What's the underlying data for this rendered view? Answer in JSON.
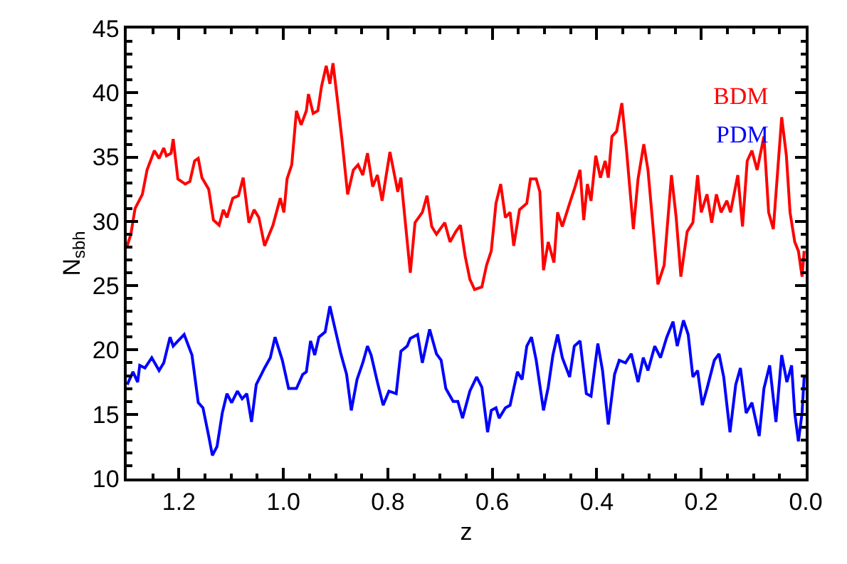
{
  "chart_data": {
    "type": "line",
    "xlabel": "z",
    "ylabel": "N$_{sbh}$",
    "xlim": [
      1.3,
      0.0
    ],
    "ylim": [
      10,
      45
    ],
    "xticks": [
      {
        "value": 1.2,
        "label": "1.2"
      },
      {
        "value": 1.0,
        "label": "1.0"
      },
      {
        "value": 0.8,
        "label": "0.8"
      },
      {
        "value": 0.6,
        "label": "0.6"
      },
      {
        "value": 0.4,
        "label": "0.4"
      },
      {
        "value": 0.2,
        "label": "0.2"
      },
      {
        "value": 0.0,
        "label": "0.0"
      }
    ],
    "yticks": [
      10,
      15,
      20,
      25,
      30,
      35,
      40,
      45
    ],
    "marker": "none",
    "line_style": "solid",
    "series": [
      {
        "name": "BDM",
        "color": "#ff0000",
        "x": [
          1.299,
          1.292,
          1.284,
          1.27,
          1.261,
          1.247,
          1.238,
          1.229,
          1.224,
          1.215,
          1.211,
          1.202,
          1.188,
          1.179,
          1.17,
          1.163,
          1.156,
          1.143,
          1.134,
          1.123,
          1.115,
          1.108,
          1.097,
          1.086,
          1.077,
          1.066,
          1.056,
          1.047,
          1.036,
          1.02,
          1.006,
          0.999,
          0.993,
          0.984,
          0.975,
          0.966,
          0.956,
          0.952,
          0.943,
          0.934,
          0.927,
          0.918,
          0.911,
          0.905,
          0.897,
          0.888,
          0.877,
          0.866,
          0.857,
          0.848,
          0.839,
          0.829,
          0.82,
          0.811,
          0.796,
          0.781,
          0.775,
          0.757,
          0.748,
          0.734,
          0.725,
          0.716,
          0.707,
          0.691,
          0.681,
          0.67,
          0.661,
          0.652,
          0.643,
          0.634,
          0.62,
          0.611,
          0.602,
          0.593,
          0.584,
          0.575,
          0.566,
          0.559,
          0.548,
          0.534,
          0.527,
          0.516,
          0.509,
          0.502,
          0.493,
          0.482,
          0.475,
          0.466,
          0.452,
          0.443,
          0.432,
          0.425,
          0.418,
          0.411,
          0.402,
          0.393,
          0.384,
          0.378,
          0.371,
          0.362,
          0.352,
          0.343,
          0.33,
          0.321,
          0.31,
          0.302,
          0.293,
          0.283,
          0.271,
          0.257,
          0.248,
          0.239,
          0.227,
          0.216,
          0.207,
          0.2,
          0.189,
          0.18,
          0.171,
          0.162,
          0.151,
          0.144,
          0.13,
          0.121,
          0.112,
          0.103,
          0.093,
          0.08,
          0.071,
          0.062,
          0.046,
          0.037,
          0.03,
          0.021,
          0.014,
          0.007,
          0.003
        ],
        "values": [
          28.1,
          29.0,
          31.0,
          32.1,
          34.0,
          35.5,
          34.9,
          35.7,
          35.1,
          35.3,
          36.4,
          33.3,
          32.9,
          33.1,
          34.7,
          34.9,
          33.4,
          32.5,
          30.1,
          29.7,
          30.9,
          30.3,
          31.8,
          32.0,
          33.4,
          29.9,
          30.9,
          30.3,
          28.1,
          29.7,
          31.8,
          30.7,
          33.3,
          34.4,
          38.6,
          37.5,
          38.6,
          39.9,
          38.4,
          38.6,
          40.5,
          42.1,
          40.7,
          42.3,
          39.6,
          36.4,
          32.1,
          34.0,
          34.4,
          33.6,
          35.3,
          32.7,
          33.6,
          31.6,
          35.4,
          32.3,
          33.4,
          26.0,
          29.9,
          30.7,
          32.0,
          29.6,
          29.0,
          29.9,
          28.4,
          29.2,
          29.7,
          27.3,
          25.5,
          24.7,
          24.9,
          26.6,
          27.7,
          31.4,
          32.9,
          30.3,
          30.7,
          28.1,
          30.9,
          31.4,
          33.3,
          33.3,
          32.3,
          26.2,
          28.4,
          26.8,
          30.7,
          29.6,
          31.4,
          32.5,
          34.0,
          30.1,
          32.9,
          31.6,
          35.1,
          33.4,
          34.7,
          33.4,
          36.6,
          37.0,
          39.2,
          35.5,
          29.4,
          33.3,
          36.0,
          34.0,
          29.9,
          25.1,
          26.6,
          33.6,
          30.3,
          25.7,
          29.2,
          29.9,
          33.6,
          30.7,
          32.1,
          29.9,
          32.1,
          30.7,
          31.6,
          30.7,
          33.6,
          29.6,
          34.7,
          35.5,
          34.0,
          36.6,
          30.7,
          29.4,
          38.1,
          35.1,
          30.7,
          28.4,
          27.7,
          25.7,
          27.7
        ]
      },
      {
        "name": "PDM",
        "color": "#0000ff",
        "x": [
          1.299,
          1.288,
          1.279,
          1.275,
          1.265,
          1.252,
          1.238,
          1.229,
          1.217,
          1.211,
          1.202,
          1.19,
          1.175,
          1.163,
          1.154,
          1.143,
          1.136,
          1.127,
          1.117,
          1.108,
          1.099,
          1.088,
          1.079,
          1.07,
          1.061,
          1.052,
          1.036,
          1.025,
          1.016,
          1.002,
          0.99,
          0.975,
          0.963,
          0.956,
          0.948,
          0.94,
          0.932,
          0.92,
          0.911,
          0.902,
          0.89,
          0.879,
          0.87,
          0.859,
          0.848,
          0.839,
          0.832,
          0.82,
          0.809,
          0.798,
          0.784,
          0.775,
          0.763,
          0.757,
          0.743,
          0.734,
          0.72,
          0.707,
          0.698,
          0.689,
          0.675,
          0.666,
          0.657,
          0.643,
          0.63,
          0.62,
          0.609,
          0.602,
          0.593,
          0.587,
          0.575,
          0.566,
          0.552,
          0.543,
          0.534,
          0.525,
          0.516,
          0.502,
          0.493,
          0.484,
          0.475,
          0.466,
          0.452,
          0.443,
          0.432,
          0.42,
          0.411,
          0.398,
          0.389,
          0.378,
          0.366,
          0.357,
          0.345,
          0.334,
          0.321,
          0.311,
          0.302,
          0.289,
          0.278,
          0.266,
          0.254,
          0.246,
          0.234,
          0.225,
          0.216,
          0.207,
          0.198,
          0.189,
          0.175,
          0.166,
          0.157,
          0.145,
          0.134,
          0.125,
          0.114,
          0.103,
          0.089,
          0.08,
          0.069,
          0.057,
          0.046,
          0.036,
          0.027,
          0.021,
          0.014,
          0.007,
          0.003
        ],
        "values": [
          17.3,
          18.3,
          17.5,
          18.8,
          18.6,
          19.4,
          18.4,
          19.0,
          21.0,
          20.3,
          20.7,
          21.2,
          19.6,
          15.9,
          15.5,
          13.3,
          11.8,
          12.5,
          15.1,
          16.6,
          15.9,
          16.8,
          16.2,
          16.6,
          14.4,
          17.3,
          18.6,
          19.4,
          21.0,
          19.2,
          17.0,
          17.0,
          18.1,
          18.3,
          20.7,
          19.6,
          21.0,
          21.4,
          23.4,
          21.8,
          19.7,
          18.1,
          15.3,
          17.7,
          19.0,
          20.3,
          19.6,
          17.5,
          15.7,
          16.8,
          16.6,
          19.9,
          20.3,
          20.9,
          21.2,
          19.0,
          21.6,
          19.7,
          19.2,
          17.0,
          16.0,
          16.0,
          14.7,
          16.8,
          17.9,
          17.1,
          13.6,
          15.3,
          15.5,
          14.7,
          15.5,
          15.7,
          18.3,
          17.7,
          20.3,
          21.0,
          19.2,
          15.3,
          17.1,
          19.6,
          21.2,
          19.4,
          17.9,
          20.3,
          20.7,
          16.6,
          16.4,
          20.5,
          18.4,
          14.2,
          18.1,
          19.2,
          19.0,
          19.7,
          17.5,
          19.4,
          18.4,
          20.3,
          19.4,
          21.0,
          22.2,
          20.3,
          22.3,
          21.2,
          17.9,
          18.4,
          15.7,
          17.0,
          19.2,
          19.7,
          17.9,
          13.6,
          17.3,
          18.6,
          15.1,
          15.9,
          13.3,
          17.0,
          18.8,
          14.4,
          19.6,
          17.5,
          18.8,
          15.1,
          12.9,
          15.1,
          17.9
        ]
      }
    ]
  }
}
